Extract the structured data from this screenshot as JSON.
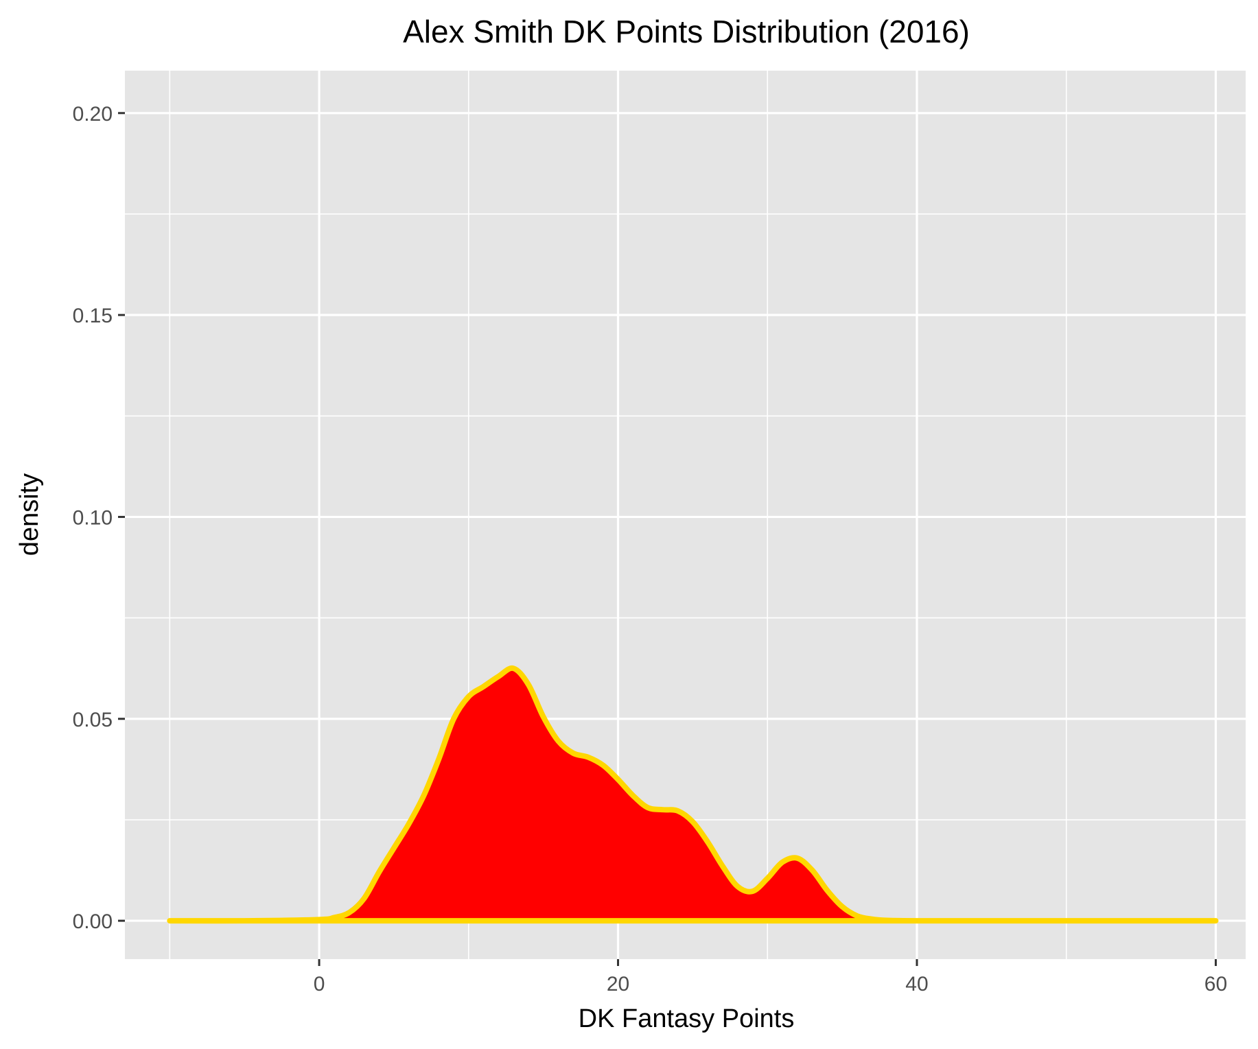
{
  "chart_data": {
    "type": "area",
    "title": "Alex Smith DK Points Distribution (2016)",
    "xlabel": "DK Fantasy Points",
    "ylabel": "density",
    "xlim": [
      -13,
      62
    ],
    "ylim": [
      -0.0095,
      0.2105
    ],
    "x_ticks": [
      0,
      20,
      40,
      60
    ],
    "x_tick_labels": [
      "0",
      "20",
      "40",
      "60"
    ],
    "y_ticks": [
      0.0,
      0.05,
      0.1,
      0.15,
      0.2
    ],
    "y_tick_labels": [
      "0.00",
      "0.05",
      "0.10",
      "0.15",
      "0.20"
    ],
    "x_minor": [
      -10,
      10,
      30,
      50
    ],
    "y_minor": [
      0.025,
      0.075,
      0.125,
      0.175
    ],
    "grid": true,
    "legend": "none",
    "fill_color": "#FF0000",
    "line_color": "#FFD700",
    "panel_color": "#E5E5E5",
    "grid_color": "#FFFFFF",
    "series": [
      {
        "x": [
          -10,
          -5,
          0,
          1,
          2,
          3,
          4,
          5,
          6,
          7,
          8,
          9,
          10,
          11,
          12,
          13,
          14,
          15,
          16,
          17,
          18,
          19,
          20,
          21,
          22,
          23,
          24,
          25,
          26,
          27,
          28,
          29,
          30,
          31,
          32,
          33,
          34,
          35,
          36,
          37,
          38,
          40,
          45,
          50,
          55,
          60
        ],
        "y": [
          0,
          0,
          0.0003,
          0.0008,
          0.002,
          0.0055,
          0.012,
          0.018,
          0.024,
          0.031,
          0.04,
          0.05,
          0.0555,
          0.058,
          0.0605,
          0.0625,
          0.0585,
          0.0505,
          0.0445,
          0.0415,
          0.0405,
          0.0385,
          0.035,
          0.031,
          0.028,
          0.0275,
          0.0272,
          0.0245,
          0.0195,
          0.0135,
          0.0085,
          0.0073,
          0.0105,
          0.0145,
          0.0155,
          0.0125,
          0.0075,
          0.0035,
          0.0012,
          0.0004,
          0.0001,
          0,
          0,
          0,
          0,
          0
        ]
      }
    ]
  }
}
